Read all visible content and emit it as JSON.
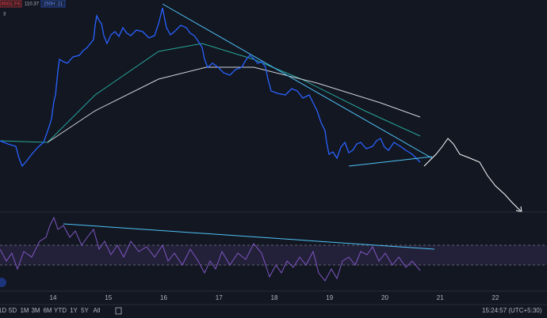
{
  "header": {
    "symbol": "4NGL F4",
    "price": "110.37",
    "indicator": "250H .11",
    "count": "3"
  },
  "time_axis": {
    "labels": [
      "14",
      "15",
      "16",
      "17",
      "18",
      "19",
      "20",
      "21",
      "22"
    ]
  },
  "toolbar": {
    "ranges": [
      "1D",
      "5D",
      "1M",
      "3M",
      "6M",
      "YTD",
      "1Y",
      "5Y",
      "All"
    ],
    "clock": "15:24:57 (UTC+5:30)"
  }
}
